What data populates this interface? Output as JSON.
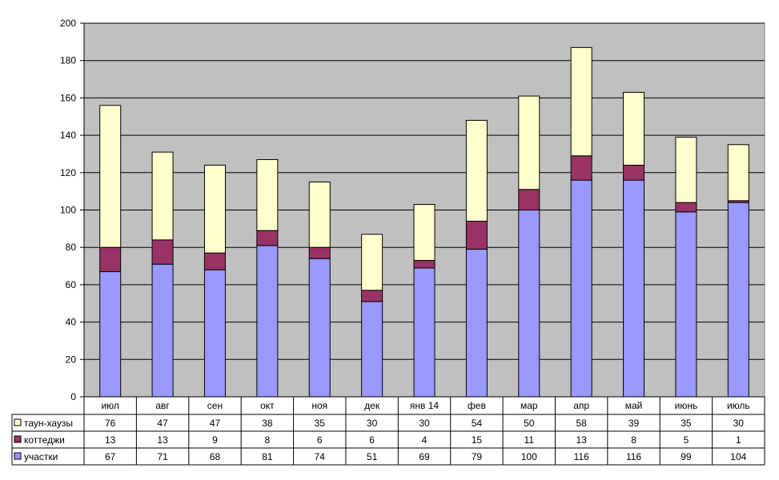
{
  "chart_data": {
    "type": "bar",
    "stacked": true,
    "categories": [
      "июл",
      "авг",
      "сен",
      "окт",
      "ноя",
      "дек",
      "янв 14",
      "фев",
      "мар",
      "апр",
      "май",
      "июнь",
      "июль"
    ],
    "series": [
      {
        "name": "участки",
        "color": "#9999ff",
        "values": [
          67,
          71,
          68,
          81,
          74,
          51,
          69,
          79,
          100,
          116,
          116,
          99,
          104
        ]
      },
      {
        "name": "коттеджи",
        "color": "#993366",
        "values": [
          13,
          13,
          9,
          8,
          6,
          6,
          4,
          15,
          11,
          13,
          8,
          5,
          1
        ]
      },
      {
        "name": "таун-хаузы",
        "color": "#ffffcc",
        "values": [
          76,
          47,
          47,
          38,
          35,
          30,
          30,
          54,
          50,
          58,
          39,
          35,
          30
        ]
      }
    ],
    "table_order": [
      2,
      1,
      0
    ],
    "ylim": [
      0,
      200
    ],
    "yticks": [
      0,
      20,
      40,
      60,
      80,
      100,
      120,
      140,
      160,
      180,
      200
    ],
    "grid": true,
    "legend": "data-table",
    "plot_background": "#c0c0c0",
    "title": "",
    "xlabel": "",
    "ylabel": ""
  }
}
